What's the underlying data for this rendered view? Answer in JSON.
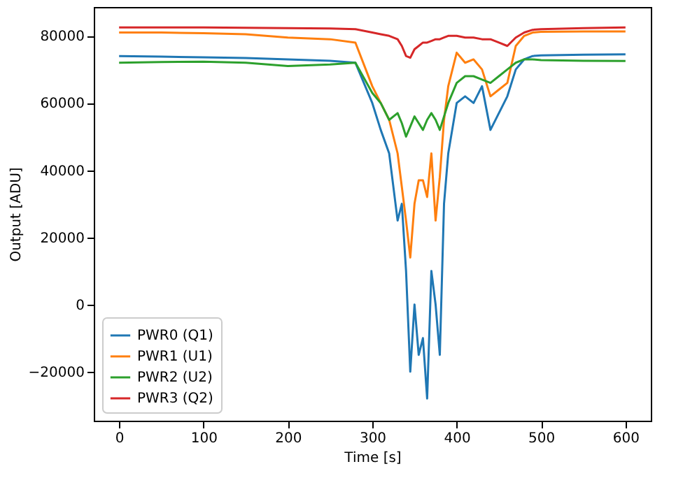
{
  "chart_data": {
    "type": "line",
    "xlabel": "Time [s]",
    "ylabel": "Output [ADU]",
    "xlim": [
      -30,
      630
    ],
    "ylim": [
      -34600,
      88600
    ],
    "xticks": [
      0,
      100,
      200,
      300,
      400,
      500,
      600
    ],
    "yticks": [
      -20000,
      0,
      20000,
      40000,
      60000,
      80000
    ],
    "grid": false,
    "legend": "bottom left",
    "line_style": "solid",
    "marker": "none",
    "x": [
      0,
      50,
      100,
      150,
      200,
      250,
      280,
      300,
      310,
      320,
      330,
      335,
      340,
      345,
      350,
      355,
      360,
      365,
      370,
      375,
      380,
      385,
      390,
      400,
      410,
      420,
      430,
      440,
      450,
      460,
      470,
      480,
      490,
      500,
      550,
      600
    ],
    "series": [
      {
        "name": "PWR0 (Q1)",
        "color": "#1f77b4",
        "values": [
          74000,
          73800,
          73600,
          73400,
          73000,
          72600,
          72000,
          60000,
          52000,
          45000,
          25000,
          30000,
          10000,
          -20000,
          0,
          -15000,
          -10000,
          -28000,
          10000,
          0,
          -15000,
          30000,
          45000,
          60000,
          62000,
          60000,
          65000,
          52000,
          57000,
          62000,
          70000,
          73000,
          74000,
          74200,
          74400,
          74500
        ]
      },
      {
        "name": "PWR1 (U1)",
        "color": "#ff7f0e",
        "values": [
          81000,
          81000,
          80800,
          80500,
          79500,
          79000,
          78000,
          65000,
          60000,
          55000,
          45000,
          35000,
          25000,
          14000,
          30000,
          37000,
          37000,
          32000,
          45000,
          25000,
          38000,
          55000,
          65000,
          75000,
          72000,
          73000,
          70000,
          62000,
          64000,
          66000,
          77000,
          80000,
          81000,
          81200,
          81300,
          81300
        ]
      },
      {
        "name": "PWR2 (U2)",
        "color": "#2ca02c",
        "values": [
          72000,
          72200,
          72300,
          72000,
          71000,
          71500,
          72000,
          63000,
          60000,
          55000,
          57000,
          54000,
          50000,
          53000,
          56000,
          54000,
          52000,
          55000,
          57000,
          55000,
          52000,
          56000,
          60000,
          66000,
          68000,
          68000,
          67000,
          66000,
          68000,
          70000,
          72000,
          73000,
          73000,
          72800,
          72600,
          72500
        ]
      },
      {
        "name": "PWR3 (Q2)",
        "color": "#d62728",
        "values": [
          82500,
          82500,
          82500,
          82400,
          82300,
          82200,
          82000,
          81000,
          80500,
          80000,
          79000,
          77000,
          74000,
          73500,
          76000,
          77000,
          78000,
          78000,
          78500,
          79000,
          79000,
          79500,
          80000,
          80000,
          79500,
          79500,
          79000,
          79000,
          78000,
          77000,
          79500,
          81000,
          81800,
          82000,
          82300,
          82500
        ]
      }
    ]
  }
}
